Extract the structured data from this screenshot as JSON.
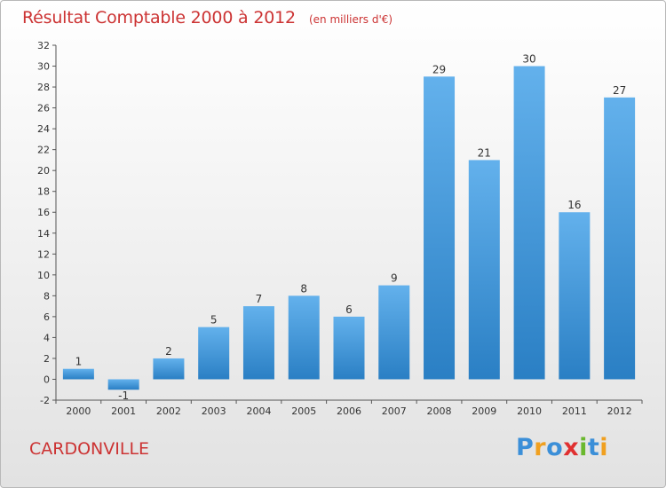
{
  "header": {
    "title": "Résultat Comptable 2000 à 2012",
    "subtitle": "(en milliers d'€)"
  },
  "footer": {
    "town": "CARDONVILLE",
    "brand_letters": [
      {
        "ch": "P",
        "color": "#3b8fd8"
      },
      {
        "ch": "r",
        "color": "#f0a020"
      },
      {
        "ch": "o",
        "color": "#3b8fd8"
      },
      {
        "ch": "x",
        "color": "#e03030"
      },
      {
        "ch": "i",
        "color": "#6ab82e"
      },
      {
        "ch": "t",
        "color": "#3b8fd8"
      },
      {
        "ch": "i",
        "color": "#f0a020"
      }
    ]
  },
  "colors": {
    "bar_light": "#63b1ec",
    "bar_dark": "#2a7fc4",
    "title": "#cc3333"
  },
  "chart_data": {
    "type": "bar",
    "title": "Résultat Comptable 2000 à 2012",
    "subtitle": "(en milliers d'€)",
    "categories": [
      "2000",
      "2001",
      "2002",
      "2003",
      "2004",
      "2005",
      "2006",
      "2007",
      "2008",
      "2009",
      "2010",
      "2011",
      "2012"
    ],
    "values": [
      1,
      -1,
      2,
      5,
      7,
      8,
      6,
      9,
      29,
      21,
      30,
      16,
      27
    ],
    "data_labels": [
      "1",
      "-1",
      "2",
      "5",
      "7",
      "8",
      "6",
      "9",
      "29",
      "21",
      "30",
      "16",
      "27"
    ],
    "y_ticks": [
      -2,
      0,
      2,
      4,
      6,
      8,
      10,
      12,
      14,
      16,
      18,
      20,
      22,
      24,
      26,
      28,
      30,
      32
    ],
    "ylim": [
      -2,
      32
    ],
    "grid": false,
    "legend": "none"
  }
}
